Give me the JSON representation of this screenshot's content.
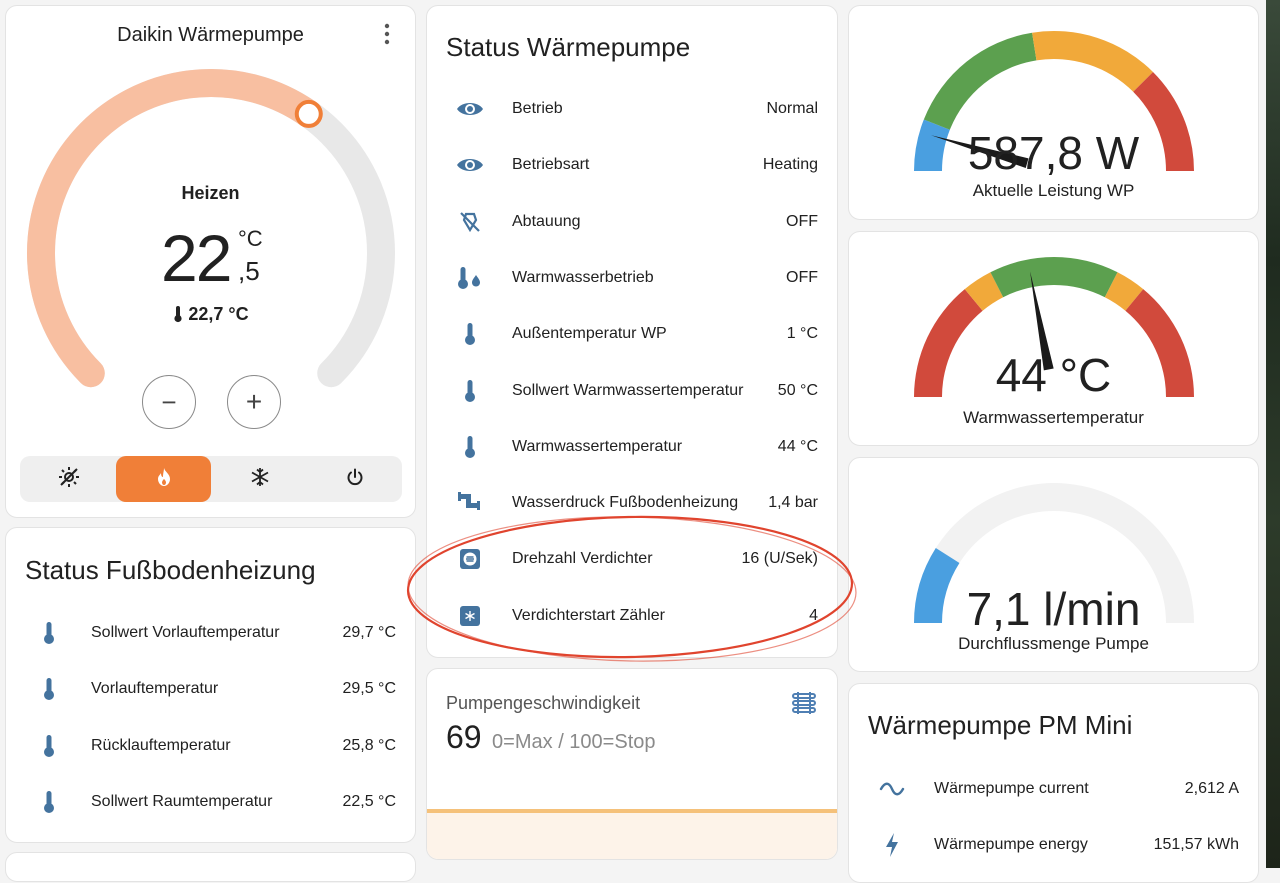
{
  "thermostat": {
    "title": "Daikin Wärmepumpe",
    "mode_label": "Heizen",
    "target_int": "22",
    "target_dec": ",5",
    "unit": "°C",
    "current_temp": "22,7 °C",
    "minus_symbol": "−",
    "plus_symbol": "+",
    "setpoint_fraction": 0.63,
    "colors": {
      "active_arc": "#f8bfa1",
      "inactive_arc": "#e8e8e8",
      "handle": "#f07f38",
      "mode_active": "#f07f38",
      "mode_bar": "#efefef"
    },
    "modes": [
      {
        "name": "auto",
        "icon": "sun-snowflake-icon",
        "active": false
      },
      {
        "name": "heat",
        "icon": "fire-icon",
        "active": true
      },
      {
        "name": "cool",
        "icon": "snowflake-icon",
        "active": false
      },
      {
        "name": "off",
        "icon": "power-icon",
        "active": false
      }
    ]
  },
  "floor_heating": {
    "title": "Status Fußbodenheizung",
    "rows": [
      {
        "icon": "thermometer-icon",
        "label": "Sollwert Vorlauftemperatur",
        "value": "29,7 °C"
      },
      {
        "icon": "thermometer-icon",
        "label": "Vorlauftemperatur",
        "value": "29,5 °C"
      },
      {
        "icon": "thermometer-icon",
        "label": "Rücklauftemperatur",
        "value": "25,8 °C"
      },
      {
        "icon": "thermometer-icon",
        "label": "Sollwert Raumtemperatur",
        "value": "22,5 °C"
      }
    ]
  },
  "heat_pump_status": {
    "title": "Status Wärmepumpe",
    "rows": [
      {
        "icon": "eye-icon",
        "label": "Betrieb",
        "value": "Normal"
      },
      {
        "icon": "eye-icon",
        "label": "Betriebsart",
        "value": "Heating"
      },
      {
        "icon": "defrost-off-icon",
        "label": "Abtauung",
        "value": "OFF"
      },
      {
        "icon": "thermometer-water-icon",
        "label": "Warmwasserbetrieb",
        "value": "OFF"
      },
      {
        "icon": "thermometer-icon",
        "label": "Außentemperatur WP",
        "value": "1 °C"
      },
      {
        "icon": "thermometer-icon",
        "label": "Sollwert Warmwassertemperatur",
        "value": "50 °C"
      },
      {
        "icon": "thermometer-icon",
        "label": "Warmwassertemperatur",
        "value": "44 °C"
      },
      {
        "icon": "pipe-icon",
        "label": "Wasserdruck Fußbodenheizung",
        "value": "1,4 bar"
      },
      {
        "icon": "compressor-speed-icon",
        "label": "Drehzahl Verdichter",
        "value": "16 (U/Sek)"
      },
      {
        "icon": "compressor-count-icon",
        "label": "Verdichterstart Zähler",
        "value": "4"
      }
    ],
    "annotation_color": "#e0442e"
  },
  "pump_speed": {
    "title": "Pumpengeschwindigkeit",
    "value": "69",
    "hint": "0=Max / 100=Stop",
    "icon": "radiator-icon",
    "colors": {
      "fill": "#fdf3e9",
      "line": "#f5c17a",
      "icon": "#4f7fb3"
    }
  },
  "gauges": [
    {
      "name": "power",
      "value": "587,8 W",
      "label": "Aktuelle Leistung WP",
      "fraction": 0.09,
      "segments": [
        {
          "from": 0,
          "to": 0.12,
          "color": "#4a9fe0"
        },
        {
          "from": 0.12,
          "to": 0.45,
          "color": "#5ca04f"
        },
        {
          "from": 0.45,
          "to": 0.75,
          "color": "#f1a93a"
        },
        {
          "from": 0.75,
          "to": 1,
          "color": "#d14a3c"
        }
      ],
      "needle": true
    },
    {
      "name": "hot-water",
      "value": "44 °C",
      "label": "Warmwassertemperatur",
      "fraction": 0.44,
      "segments": [
        {
          "from": 0,
          "to": 0.28,
          "color": "#d14a3c"
        },
        {
          "from": 0.28,
          "to": 0.35,
          "color": "#f1a93a"
        },
        {
          "from": 0.35,
          "to": 0.65,
          "color": "#5ca04f"
        },
        {
          "from": 0.65,
          "to": 0.72,
          "color": "#f1a93a"
        },
        {
          "from": 0.72,
          "to": 1,
          "color": "#d14a3c"
        }
      ],
      "needle": true
    },
    {
      "name": "flow",
      "value": "7,1 l/min",
      "label": "Durchflussmenge Pumpe",
      "fraction": 0.18,
      "segments": [
        {
          "from": 0,
          "to": 1,
          "color": "#f2f2f2"
        }
      ],
      "fill_color": "#4a9fe0",
      "needle": false
    }
  ],
  "pm_mini": {
    "title": "Wärmepumpe PM Mini",
    "rows": [
      {
        "icon": "current-ac-icon",
        "label": "Wärmepumpe current",
        "value": "2,612 A"
      },
      {
        "icon": "flash-icon",
        "label": "Wärmepumpe energy",
        "value": "151,57 kWh"
      }
    ]
  }
}
